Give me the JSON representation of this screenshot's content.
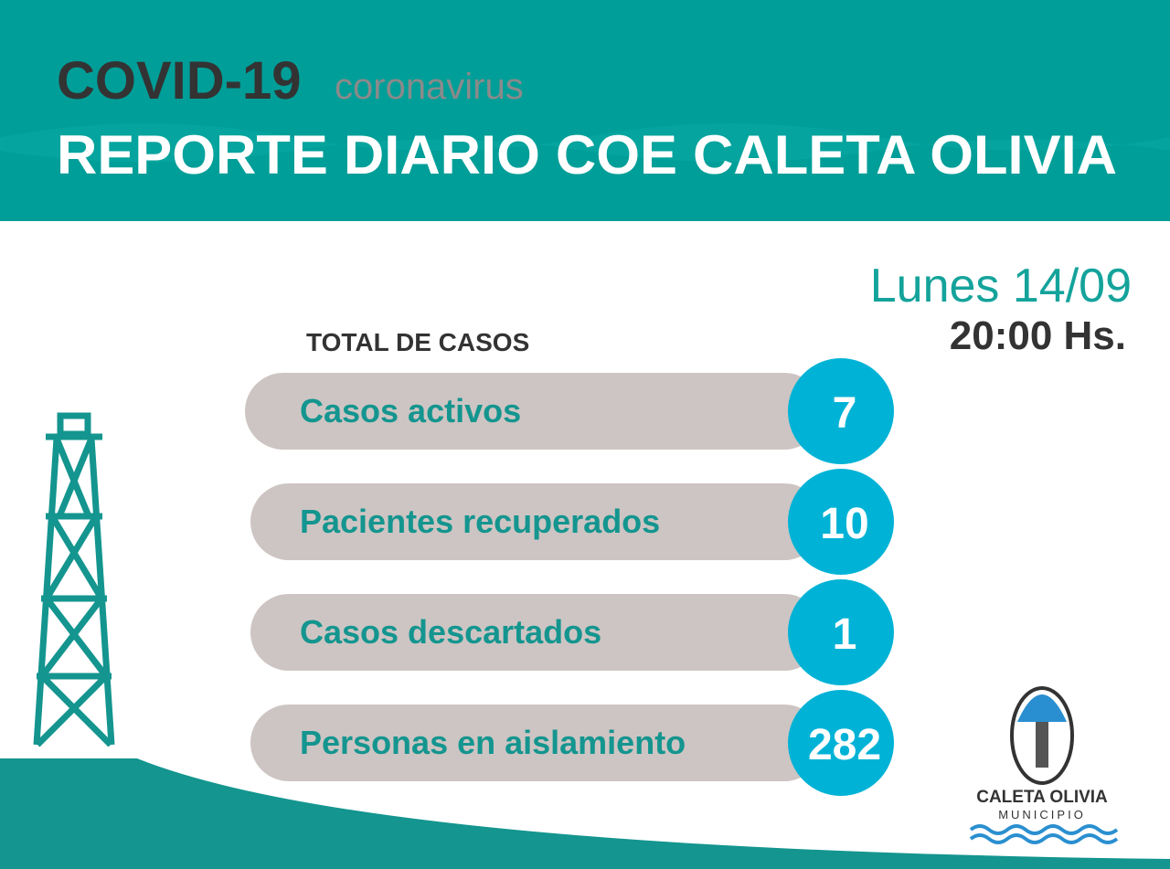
{
  "header": {
    "title": "COVID-19",
    "subtitle": "coronavirus",
    "heading": "REPORTE DIARIO COE CALETA OLIVIA"
  },
  "date": {
    "day": "Lunes 14/09",
    "time": "20:00 Hs."
  },
  "section_title": "TOTAL DE CASOS",
  "rows": [
    {
      "label": "Casos activos",
      "value": "7"
    },
    {
      "label": "Pacientes recuperados",
      "value": "10"
    },
    {
      "label": "Casos descartados",
      "value": "1"
    },
    {
      "label": "Personas en aislamiento",
      "value": "282"
    }
  ],
  "logo": {
    "name": "CALETA OLIVIA",
    "subtitle": "MUNICIPIO"
  }
}
